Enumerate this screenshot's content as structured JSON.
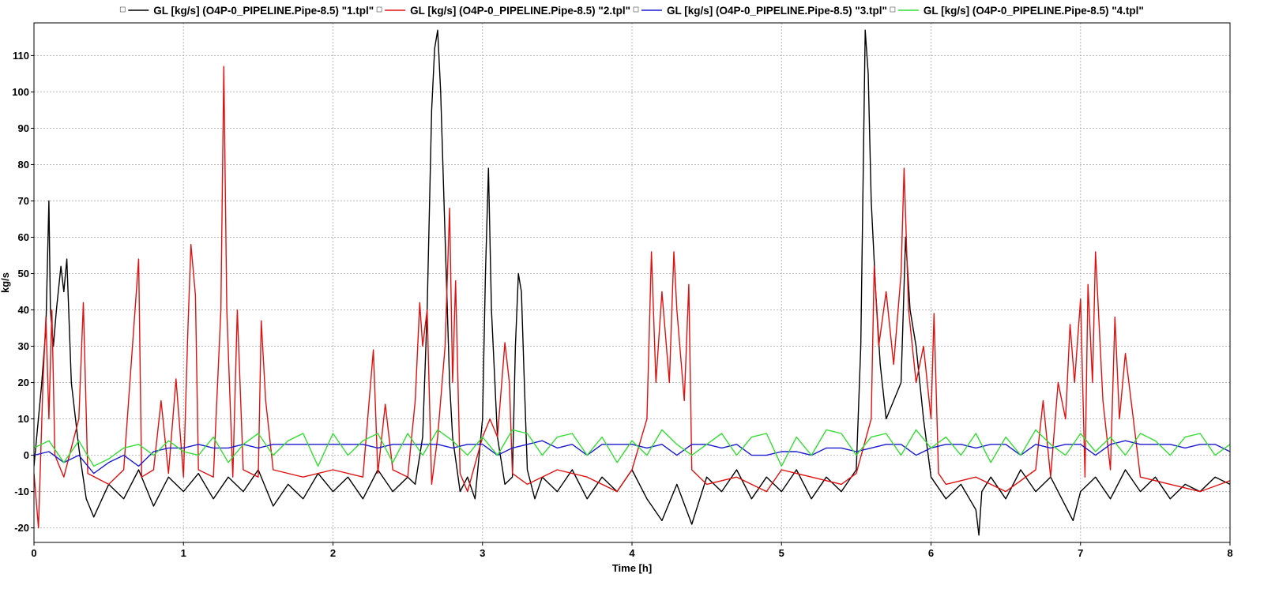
{
  "chart_data": {
    "type": "line",
    "title": "",
    "xlabel": "Time [h]",
    "ylabel": "kg/s",
    "xlim": [
      0,
      8
    ],
    "ylim": [
      -24,
      119
    ],
    "x_ticks": [
      0,
      1,
      2,
      3,
      4,
      5,
      6,
      7,
      8
    ],
    "x_tick_labels": [
      "0",
      "1",
      "2",
      "3",
      "4",
      "5",
      "6",
      "7",
      "8"
    ],
    "y_ticks": [
      -20,
      -10,
      0,
      10,
      20,
      30,
      40,
      50,
      60,
      70,
      80,
      90,
      100,
      110
    ],
    "y_tick_labels": [
      "-20",
      "-10",
      "0",
      "10",
      "20",
      "30",
      "40",
      "50",
      "60",
      "70",
      "80",
      "90",
      "100",
      "110"
    ],
    "grid": true,
    "legend_position": "top",
    "series": [
      {
        "name": "GL [kg/s] (O4P-0_PIPELINE.Pipe-8.5) \"1.tpl\"",
        "color": "#000000",
        "x": [
          0,
          0.05,
          0.08,
          0.1,
          0.11,
          0.13,
          0.15,
          0.18,
          0.2,
          0.22,
          0.25,
          0.3,
          0.35,
          0.4,
          0.5,
          0.6,
          0.7,
          0.8,
          0.9,
          1.0,
          1.1,
          1.2,
          1.3,
          1.4,
          1.5,
          1.6,
          1.7,
          1.8,
          1.9,
          2.0,
          2.1,
          2.2,
          2.3,
          2.4,
          2.5,
          2.55,
          2.6,
          2.63,
          2.66,
          2.68,
          2.7,
          2.72,
          2.75,
          2.78,
          2.8,
          2.85,
          2.9,
          2.95,
          3.0,
          3.02,
          3.04,
          3.06,
          3.1,
          3.15,
          3.2,
          3.22,
          3.24,
          3.26,
          3.28,
          3.3,
          3.35,
          3.4,
          3.5,
          3.6,
          3.7,
          3.8,
          3.9,
          4.0,
          4.1,
          4.2,
          4.3,
          4.4,
          4.5,
          4.6,
          4.7,
          4.8,
          4.9,
          5.0,
          5.1,
          5.2,
          5.3,
          5.4,
          5.5,
          5.53,
          5.56,
          5.58,
          5.6,
          5.63,
          5.66,
          5.7,
          5.75,
          5.8,
          5.83,
          5.86,
          5.9,
          5.95,
          6.0,
          6.1,
          6.2,
          6.3,
          6.32,
          6.34,
          6.4,
          6.5,
          6.6,
          6.7,
          6.8,
          6.9,
          6.95,
          7.0,
          7.1,
          7.2,
          7.3,
          7.4,
          7.5,
          7.6,
          7.7,
          7.8,
          7.9,
          8.0
        ],
        "values": [
          -3,
          19,
          35,
          70,
          40,
          30,
          40,
          52,
          45,
          54,
          20,
          2,
          -12,
          -17,
          -8,
          -12,
          -4,
          -14,
          -6,
          -10,
          -5,
          -12,
          -6,
          -10,
          -4,
          -14,
          -8,
          -12,
          -5,
          -10,
          -6,
          -12,
          -4,
          -10,
          -6,
          -8,
          5,
          40,
          95,
          112,
          117,
          100,
          60,
          20,
          5,
          -10,
          -6,
          -12,
          10,
          50,
          79,
          40,
          5,
          -8,
          -6,
          30,
          50,
          45,
          20,
          -4,
          -12,
          -6,
          -10,
          -4,
          -12,
          -6,
          -10,
          -4,
          -12,
          -18,
          -8,
          -19,
          -6,
          -10,
          -4,
          -12,
          -6,
          -10,
          -4,
          -12,
          -6,
          -10,
          -4,
          30,
          117,
          105,
          70,
          45,
          25,
          10,
          15,
          20,
          60,
          40,
          30,
          10,
          -6,
          -12,
          -8,
          -15,
          -22,
          -10,
          -6,
          -12,
          -4,
          -10,
          -6,
          -14,
          -18,
          -10,
          -6,
          -12,
          -4,
          -10,
          -6,
          -12,
          -8,
          -10,
          -6,
          -8
        ]
      },
      {
        "name": "GL [kg/s] (O4P-0_PIPELINE.Pipe-8.5) \"2.tpl\"",
        "color": "#e01010",
        "x": [
          0,
          0.03,
          0.06,
          0.08,
          0.1,
          0.12,
          0.14,
          0.2,
          0.3,
          0.33,
          0.36,
          0.5,
          0.6,
          0.7,
          0.72,
          0.8,
          0.85,
          0.9,
          0.95,
          1.0,
          1.03,
          1.05,
          1.08,
          1.1,
          1.2,
          1.25,
          1.27,
          1.29,
          1.33,
          1.36,
          1.4,
          1.5,
          1.52,
          1.55,
          1.6,
          1.8,
          2.0,
          2.2,
          2.27,
          2.3,
          2.35,
          2.4,
          2.5,
          2.55,
          2.58,
          2.6,
          2.63,
          2.66,
          2.7,
          2.75,
          2.78,
          2.8,
          2.82,
          2.85,
          2.9,
          3.0,
          3.05,
          3.1,
          3.15,
          3.18,
          3.2,
          3.3,
          3.5,
          3.7,
          3.9,
          4.0,
          4.1,
          4.13,
          4.16,
          4.2,
          4.25,
          4.28,
          4.3,
          4.35,
          4.38,
          4.4,
          4.5,
          4.7,
          4.9,
          5.0,
          5.2,
          5.4,
          5.5,
          5.6,
          5.62,
          5.65,
          5.7,
          5.75,
          5.8,
          5.82,
          5.85,
          5.9,
          5.95,
          6.0,
          6.02,
          6.05,
          6.1,
          6.3,
          6.5,
          6.7,
          6.75,
          6.8,
          6.85,
          6.9,
          6.93,
          6.96,
          7.0,
          7.03,
          7.05,
          7.08,
          7.1,
          7.15,
          7.2,
          7.23,
          7.26,
          7.3,
          7.4,
          7.6,
          7.8,
          8.0
        ],
        "values": [
          -5,
          -20,
          20,
          38,
          10,
          40,
          0,
          -6,
          10,
          42,
          -5,
          -8,
          -4,
          54,
          -6,
          -4,
          15,
          -5,
          21,
          -6,
          35,
          58,
          44,
          -4,
          -6,
          40,
          107,
          40,
          -6,
          40,
          -4,
          -6,
          37,
          15,
          -4,
          -6,
          -4,
          -6,
          29,
          -5,
          14,
          -4,
          -6,
          15,
          42,
          30,
          40,
          -8,
          5,
          30,
          68,
          20,
          48,
          -5,
          -10,
          5,
          10,
          5,
          31,
          20,
          -5,
          -8,
          -4,
          -6,
          -10,
          -4,
          10,
          56,
          20,
          45,
          20,
          56,
          40,
          15,
          47,
          -4,
          -8,
          -6,
          -10,
          -4,
          -6,
          -8,
          -5,
          10,
          52,
          30,
          45,
          25,
          50,
          79,
          40,
          20,
          30,
          10,
          39,
          -5,
          -8,
          -6,
          -10,
          -4,
          15,
          -6,
          20,
          10,
          36,
          20,
          43,
          -6,
          47,
          20,
          56,
          15,
          -4,
          38,
          10,
          28,
          -6,
          -8,
          -10,
          -7
        ]
      },
      {
        "name": "GL [kg/s] (O4P-0_PIPELINE.Pipe-8.5) \"3.tpl\"",
        "color": "#1a1ad0",
        "x": [
          0,
          0.1,
          0.2,
          0.3,
          0.4,
          0.5,
          0.6,
          0.7,
          0.8,
          0.9,
          1.0,
          1.1,
          1.2,
          1.3,
          1.4,
          1.5,
          1.6,
          1.7,
          1.8,
          1.9,
          2.0,
          2.1,
          2.2,
          2.3,
          2.4,
          2.5,
          2.6,
          2.7,
          2.8,
          2.9,
          3.0,
          3.1,
          3.2,
          3.3,
          3.4,
          3.5,
          3.6,
          3.7,
          3.8,
          3.9,
          4.0,
          4.1,
          4.2,
          4.3,
          4.4,
          4.5,
          4.6,
          4.7,
          4.8,
          4.9,
          5.0,
          5.1,
          5.2,
          5.3,
          5.4,
          5.5,
          5.6,
          5.7,
          5.8,
          5.9,
          6.0,
          6.1,
          6.2,
          6.3,
          6.4,
          6.5,
          6.6,
          6.7,
          6.8,
          6.9,
          7.0,
          7.1,
          7.2,
          7.3,
          7.4,
          7.5,
          7.6,
          7.7,
          7.8,
          7.9,
          8.0
        ],
        "values": [
          0,
          1,
          -2,
          0,
          -5,
          -2,
          0,
          -3,
          1,
          2,
          2,
          3,
          2,
          2,
          3,
          2,
          3,
          3,
          3,
          3,
          3,
          3,
          3,
          2,
          3,
          3,
          3,
          3,
          2,
          3,
          3,
          0,
          2,
          3,
          4,
          2,
          3,
          0,
          3,
          3,
          3,
          2,
          3,
          0,
          3,
          3,
          2,
          3,
          0,
          0,
          1,
          1,
          0,
          2,
          2,
          1,
          2,
          3,
          3,
          0,
          2,
          3,
          3,
          2,
          3,
          3,
          0,
          3,
          2,
          3,
          3,
          0,
          3,
          4,
          3,
          3,
          3,
          2,
          3,
          3,
          1
        ]
      },
      {
        "name": "GL [kg/s] (O4P-0_PIPELINE.Pipe-8.5) \"4.tpl\"",
        "color": "#33dd33",
        "x": [
          0,
          0.1,
          0.2,
          0.3,
          0.4,
          0.5,
          0.6,
          0.7,
          0.8,
          0.9,
          1.0,
          1.1,
          1.2,
          1.3,
          1.4,
          1.5,
          1.6,
          1.7,
          1.8,
          1.9,
          2.0,
          2.1,
          2.2,
          2.3,
          2.4,
          2.5,
          2.6,
          2.7,
          2.8,
          2.9,
          3.0,
          3.1,
          3.2,
          3.3,
          3.4,
          3.5,
          3.6,
          3.7,
          3.8,
          3.9,
          4.0,
          4.1,
          4.2,
          4.3,
          4.4,
          4.5,
          4.6,
          4.7,
          4.8,
          4.9,
          5.0,
          5.1,
          5.2,
          5.3,
          5.4,
          5.5,
          5.6,
          5.7,
          5.8,
          5.9,
          6.0,
          6.1,
          6.2,
          6.3,
          6.4,
          6.5,
          6.6,
          6.7,
          6.8,
          6.9,
          7.0,
          7.1,
          7.2,
          7.3,
          7.4,
          7.5,
          7.6,
          7.7,
          7.8,
          7.9,
          8.0
        ],
        "values": [
          2,
          4,
          -2,
          4,
          -3,
          -1,
          2,
          3,
          0,
          4,
          1,
          0,
          5,
          -2,
          3,
          6,
          0,
          4,
          6,
          -3,
          6,
          0,
          4,
          6,
          -2,
          6,
          0,
          7,
          4,
          0,
          5,
          0,
          7,
          6,
          0,
          5,
          6,
          0,
          5,
          -2,
          4,
          0,
          7,
          3,
          0,
          3,
          6,
          0,
          5,
          6,
          -3,
          5,
          0,
          7,
          6,
          0,
          5,
          6,
          0,
          7,
          2,
          5,
          0,
          6,
          -2,
          5,
          0,
          7,
          3,
          0,
          6,
          1,
          5,
          0,
          6,
          4,
          0,
          5,
          6,
          0,
          3
        ]
      }
    ]
  }
}
